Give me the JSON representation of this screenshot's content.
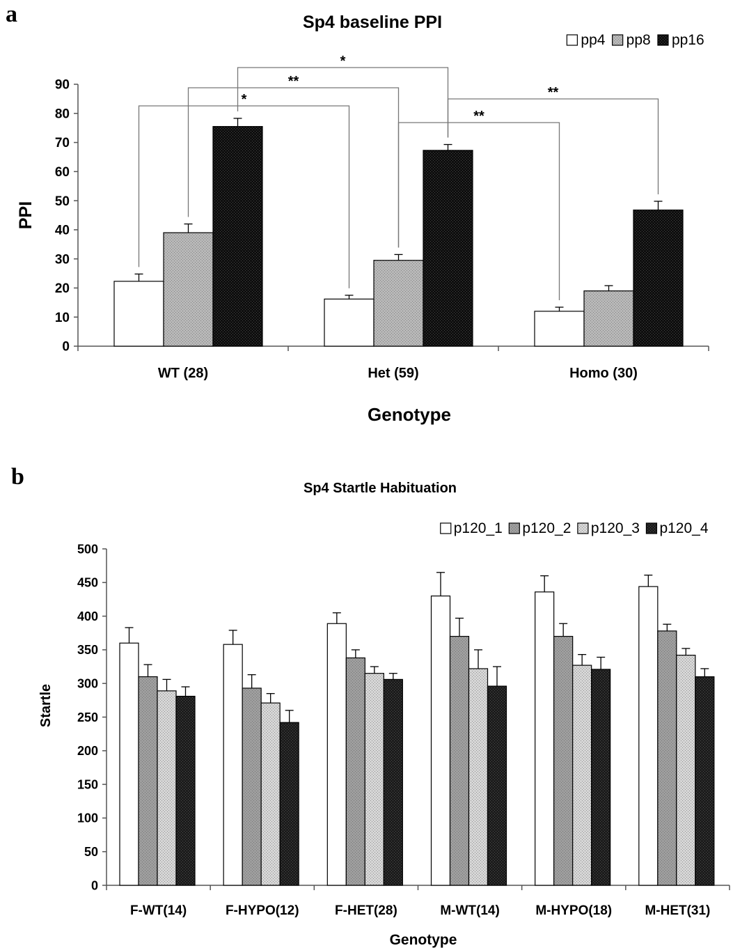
{
  "panels": {
    "a_letter": "a",
    "b_letter": "b"
  },
  "chart_data": [
    {
      "type": "bar",
      "title": "Sp4 baseline PPI",
      "xlabel": "Genotype",
      "ylabel": "PPI",
      "ylim": [
        0,
        90
      ],
      "yticks": [
        0,
        10,
        20,
        30,
        40,
        50,
        60,
        70,
        80,
        90
      ],
      "categories": [
        "WT (28)",
        "Het (59)",
        "Homo (30)"
      ],
      "legend_position": "top-right",
      "series": [
        {
          "name": "pp4",
          "values": [
            22.3,
            16.2,
            12.0
          ],
          "errors": [
            2.5,
            1.3,
            1.4
          ],
          "color": "#ffffff"
        },
        {
          "name": "pp8",
          "values": [
            39.0,
            29.5,
            19.0
          ],
          "errors": [
            3.0,
            2.0,
            1.8
          ],
          "color": "#b8b8b8"
        },
        {
          "name": "pp16",
          "values": [
            75.5,
            67.3,
            46.8
          ],
          "errors": [
            2.8,
            2.0,
            3.0
          ],
          "color": "#0e0e0e"
        }
      ],
      "annotations": [
        {
          "label": "*",
          "from": [
            0,
            0
          ],
          "to": [
            1,
            0
          ]
        },
        {
          "label": "**",
          "from": [
            0,
            1
          ],
          "to": [
            1,
            1
          ]
        },
        {
          "label": "*",
          "from": [
            0,
            2
          ],
          "to": [
            1,
            2
          ]
        },
        {
          "label": "**",
          "from": [
            1,
            1
          ],
          "to": [
            2,
            0
          ]
        },
        {
          "label": "**",
          "from": [
            1,
            2
          ],
          "to": [
            2,
            2
          ]
        }
      ]
    },
    {
      "type": "bar",
      "title": "Sp4 Startle Habituation",
      "xlabel": "Genotype",
      "ylabel": "Startle",
      "ylim": [
        0,
        500
      ],
      "yticks": [
        0,
        50,
        100,
        150,
        200,
        250,
        300,
        350,
        400,
        450,
        500
      ],
      "categories": [
        "F-WT(14)",
        "F-HYPO(12)",
        "F-HET(28)",
        "M-WT(14)",
        "M-HYPO(18)",
        "M-HET(31)"
      ],
      "legend_position": "top-right",
      "series": [
        {
          "name": "p120_1",
          "values": [
            360,
            358,
            389,
            430,
            436,
            444
          ],
          "errors": [
            23,
            21,
            16,
            35,
            24,
            17
          ],
          "color": "#ffffff"
        },
        {
          "name": "p120_2",
          "values": [
            310,
            293,
            338,
            370,
            370,
            378
          ],
          "errors": [
            18,
            20,
            12,
            27,
            19,
            10
          ],
          "color": "#9e9e9e"
        },
        {
          "name": "p120_3",
          "values": [
            289,
            271,
            315,
            322,
            327,
            342
          ],
          "errors": [
            17,
            14,
            10,
            28,
            16,
            10
          ],
          "color": "#d6d6d6"
        },
        {
          "name": "p120_4",
          "values": [
            281,
            242,
            306,
            296,
            321,
            310
          ],
          "errors": [
            14,
            18,
            9,
            29,
            18,
            12
          ],
          "color": "#1c1c1c"
        }
      ]
    }
  ]
}
